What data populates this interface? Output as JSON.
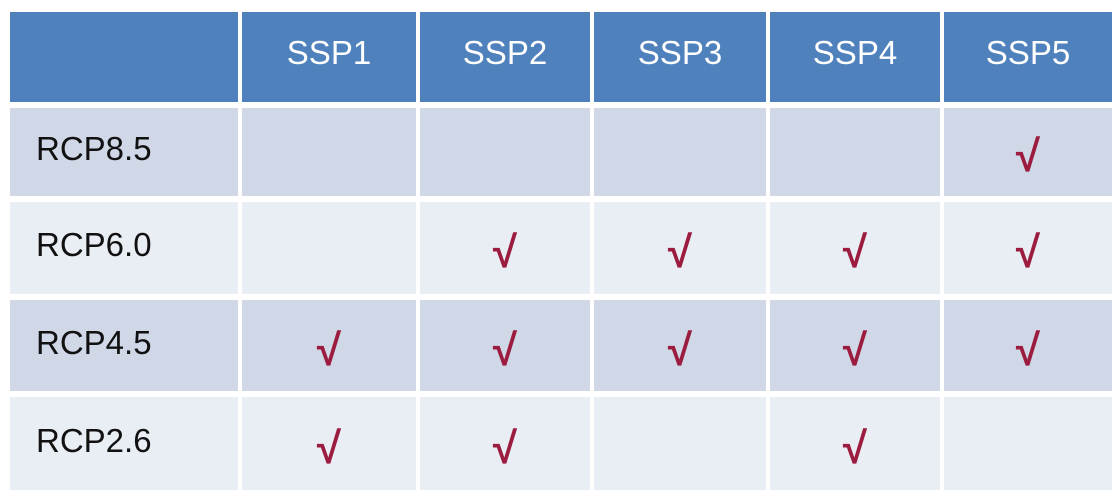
{
  "table": {
    "corner": "",
    "columns": [
      "SSP1",
      "SSP2",
      "SSP3",
      "SSP4",
      "SSP5"
    ],
    "check_symbol": "√",
    "check_color": "#9b1c3e",
    "header_color": "#4f81bd",
    "rows": [
      {
        "label": "RCP8.5",
        "cells": [
          "",
          "",
          "",
          "",
          "√"
        ]
      },
      {
        "label": "RCP6.0",
        "cells": [
          "",
          "√",
          "√",
          "√",
          "√"
        ]
      },
      {
        "label": "RCP4.5",
        "cells": [
          "√",
          "√",
          "√",
          "√",
          "√"
        ]
      },
      {
        "label": "RCP2.6",
        "cells": [
          "√",
          "√",
          "",
          "√",
          ""
        ]
      }
    ]
  }
}
